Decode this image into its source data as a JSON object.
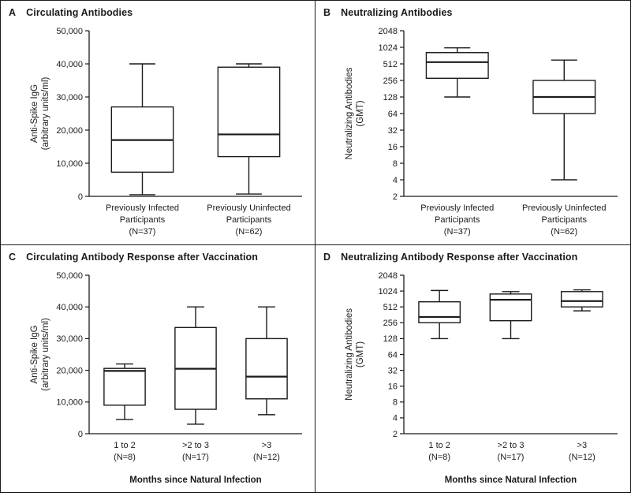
{
  "figure": {
    "background": "#ffffff",
    "border_color": "#1c1b1a",
    "ink_color": "#1c1b1a"
  },
  "chart_data": [
    {
      "type": "box",
      "panel": "A",
      "title": "Circulating Antibodies",
      "ylabel_lines": [
        "Anti-Spike IgG",
        "(arbitrary units/ml)"
      ],
      "scale": "linear",
      "ylim": [
        0,
        50000
      ],
      "yticks": [
        {
          "v": 0,
          "label": "0"
        },
        {
          "v": 10000,
          "label": "10,000"
        },
        {
          "v": 20000,
          "label": "20,000"
        },
        {
          "v": 30000,
          "label": "30,000"
        },
        {
          "v": 40000,
          "label": "40,000"
        },
        {
          "v": 50000,
          "label": "50,000"
        }
      ],
      "xlabel": "",
      "boxes": [
        {
          "label_lines": [
            "Previously Infected",
            "Participants",
            "(N=37)"
          ],
          "whislo": 500,
          "q1": 7300,
          "med": 17000,
          "q3": 27000,
          "whishi": 40000
        },
        {
          "label_lines": [
            "Previously Uninfected",
            "Participants",
            "(N=62)"
          ],
          "whislo": 700,
          "q1": 12000,
          "med": 18700,
          "q3": 39000,
          "whishi": 40000
        }
      ]
    },
    {
      "type": "box",
      "panel": "B",
      "title": "Neutralizing Antibodies",
      "ylabel_lines": [
        "Neutralizing Antibodies",
        "(GMT)"
      ],
      "scale": "log2",
      "ylim": [
        2,
        2048
      ],
      "yticks": [
        {
          "v": 2,
          "label": "2"
        },
        {
          "v": 4,
          "label": "4"
        },
        {
          "v": 8,
          "label": "8"
        },
        {
          "v": 16,
          "label": "16"
        },
        {
          "v": 32,
          "label": "32"
        },
        {
          "v": 64,
          "label": "64"
        },
        {
          "v": 128,
          "label": "128"
        },
        {
          "v": 256,
          "label": "256"
        },
        {
          "v": 512,
          "label": "512"
        },
        {
          "v": 1024,
          "label": "1024"
        },
        {
          "v": 2048,
          "label": "2048"
        }
      ],
      "xlabel": "",
      "boxes": [
        {
          "label_lines": [
            "Previously Infected",
            "Participants",
            "(N=37)"
          ],
          "whislo": 128,
          "q1": 280,
          "med": 550,
          "q3": 820,
          "whishi": 1000
        },
        {
          "label_lines": [
            "Previously Uninfected",
            "Participants",
            "(N=62)"
          ],
          "whislo": 4,
          "q1": 64,
          "med": 128,
          "q3": 256,
          "whishi": 600
        }
      ]
    },
    {
      "type": "box",
      "panel": "C",
      "title": "Circulating Antibody Response after Vaccination",
      "ylabel_lines": [
        "Anti-Spike IgG",
        "(arbitrary units/ml)"
      ],
      "scale": "linear",
      "ylim": [
        0,
        50000
      ],
      "yticks": [
        {
          "v": 0,
          "label": "0"
        },
        {
          "v": 10000,
          "label": "10,000"
        },
        {
          "v": 20000,
          "label": "20,000"
        },
        {
          "v": 30000,
          "label": "30,000"
        },
        {
          "v": 40000,
          "label": "40,000"
        },
        {
          "v": 50000,
          "label": "50,000"
        }
      ],
      "xlabel": "Months since Natural Infection",
      "boxes": [
        {
          "label_lines": [
            "1 to 2",
            "(N=8)"
          ],
          "whislo": 4500,
          "q1": 9000,
          "med": 19800,
          "q3": 20600,
          "whishi": 22000
        },
        {
          "label_lines": [
            ">2 to 3",
            "(N=17)"
          ],
          "whislo": 3000,
          "q1": 7700,
          "med": 20500,
          "q3": 33500,
          "whishi": 40000
        },
        {
          "label_lines": [
            ">3",
            "(N=12)"
          ],
          "whislo": 6000,
          "q1": 11000,
          "med": 18000,
          "q3": 30000,
          "whishi": 40000
        }
      ]
    },
    {
      "type": "box",
      "panel": "D",
      "title": "Neutralizing Antibody Response after Vaccination",
      "ylabel_lines": [
        "Neutralizing Antibodies",
        "(GMT)"
      ],
      "scale": "log2",
      "ylim": [
        2,
        2048
      ],
      "yticks": [
        {
          "v": 2,
          "label": "2"
        },
        {
          "v": 4,
          "label": "4"
        },
        {
          "v": 8,
          "label": "8"
        },
        {
          "v": 16,
          "label": "16"
        },
        {
          "v": 32,
          "label": "32"
        },
        {
          "v": 64,
          "label": "64"
        },
        {
          "v": 128,
          "label": "128"
        },
        {
          "v": 256,
          "label": "256"
        },
        {
          "v": 512,
          "label": "512"
        },
        {
          "v": 1024,
          "label": "1024"
        },
        {
          "v": 2048,
          "label": "2048"
        }
      ],
      "xlabel": "Months since Natural Infection",
      "boxes": [
        {
          "label_lines": [
            "1 to 2",
            "(N=8)"
          ],
          "whislo": 128,
          "q1": 256,
          "med": 330,
          "q3": 640,
          "whishi": 1050
        },
        {
          "label_lines": [
            ">2 to 3",
            "(N=17)"
          ],
          "whislo": 128,
          "q1": 280,
          "med": 700,
          "q3": 900,
          "whishi": 1000
        },
        {
          "label_lines": [
            ">3",
            "(N=12)"
          ],
          "whislo": 430,
          "q1": 512,
          "med": 660,
          "q3": 1000,
          "whishi": 1080
        }
      ]
    }
  ]
}
